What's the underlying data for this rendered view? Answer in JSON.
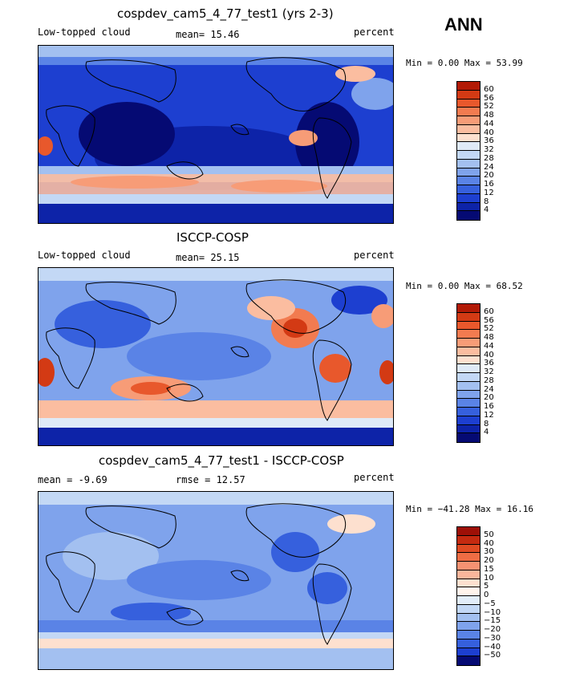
{
  "season": "ANN",
  "units": "percent",
  "panels": [
    {
      "title": "cospdev_cam5_4_77_test1 (yrs 2-3)",
      "left_label": "Low-topped cloud",
      "center_label": "mean=  15.46",
      "right_label": "percent",
      "minmax": "Min =    0.00 Max =   53.99",
      "levels": [
        "60",
        "56",
        "52",
        "48",
        "44",
        "40",
        "36",
        "32",
        "28",
        "24",
        "20",
        "16",
        "12",
        "8",
        "4"
      ],
      "colors": [
        "#b21a06",
        "#d33a14",
        "#e8582c",
        "#f27b50",
        "#f79c77",
        "#fbbda0",
        "#fde0cf",
        "#dfeaf7",
        "#c3d8f5",
        "#a3c0f0",
        "#7fa3ec",
        "#5a83e6",
        "#3660dd",
        "#1d3fd0",
        "#0d23a8",
        "#050a73"
      ],
      "mean_value": 15.46,
      "min_value": 0.0,
      "max_value": 53.99
    },
    {
      "title": "ISCCP-COSP",
      "left_label": "Low-topped cloud",
      "center_label": "mean=  25.15",
      "right_label": "percent",
      "minmax": "Min =    0.00 Max =   68.52",
      "levels": [
        "60",
        "56",
        "52",
        "48",
        "44",
        "40",
        "36",
        "32",
        "28",
        "24",
        "20",
        "16",
        "12",
        "8",
        "4"
      ],
      "colors": [
        "#b21a06",
        "#d33a14",
        "#e8582c",
        "#f27b50",
        "#f79c77",
        "#fbbda0",
        "#fde0cf",
        "#dfeaf7",
        "#c3d8f5",
        "#a3c0f0",
        "#7fa3ec",
        "#5a83e6",
        "#3660dd",
        "#1d3fd0",
        "#0d23a8",
        "#050a73"
      ],
      "mean_value": 25.15,
      "min_value": 0.0,
      "max_value": 68.52
    },
    {
      "title": "cospdev_cam5_4_77_test1 - ISCCP-COSP",
      "left_label": "mean =   -9.69",
      "center_label": "rmse =   12.57",
      "right_label": "percent",
      "minmax": "Min = −41.28 Max =   16.16",
      "levels": [
        "50",
        "40",
        "30",
        "20",
        "15",
        "10",
        "5",
        "0",
        "−5",
        "−10",
        "−15",
        "−20",
        "−30",
        "−40",
        "−50"
      ],
      "colors": [
        "#9e1007",
        "#c42a10",
        "#df4a22",
        "#ef6d44",
        "#f69272",
        "#fab69c",
        "#fde0cf",
        "#fff4ec",
        "#e2edf9",
        "#c3d8f5",
        "#a3c0f0",
        "#7fa3ec",
        "#5a83e6",
        "#3660dd",
        "#1d3fd0",
        "#050a73"
      ],
      "mean_value": -9.69,
      "rmse_value": 12.57,
      "min_value": -41.28,
      "max_value": 16.16
    }
  ]
}
